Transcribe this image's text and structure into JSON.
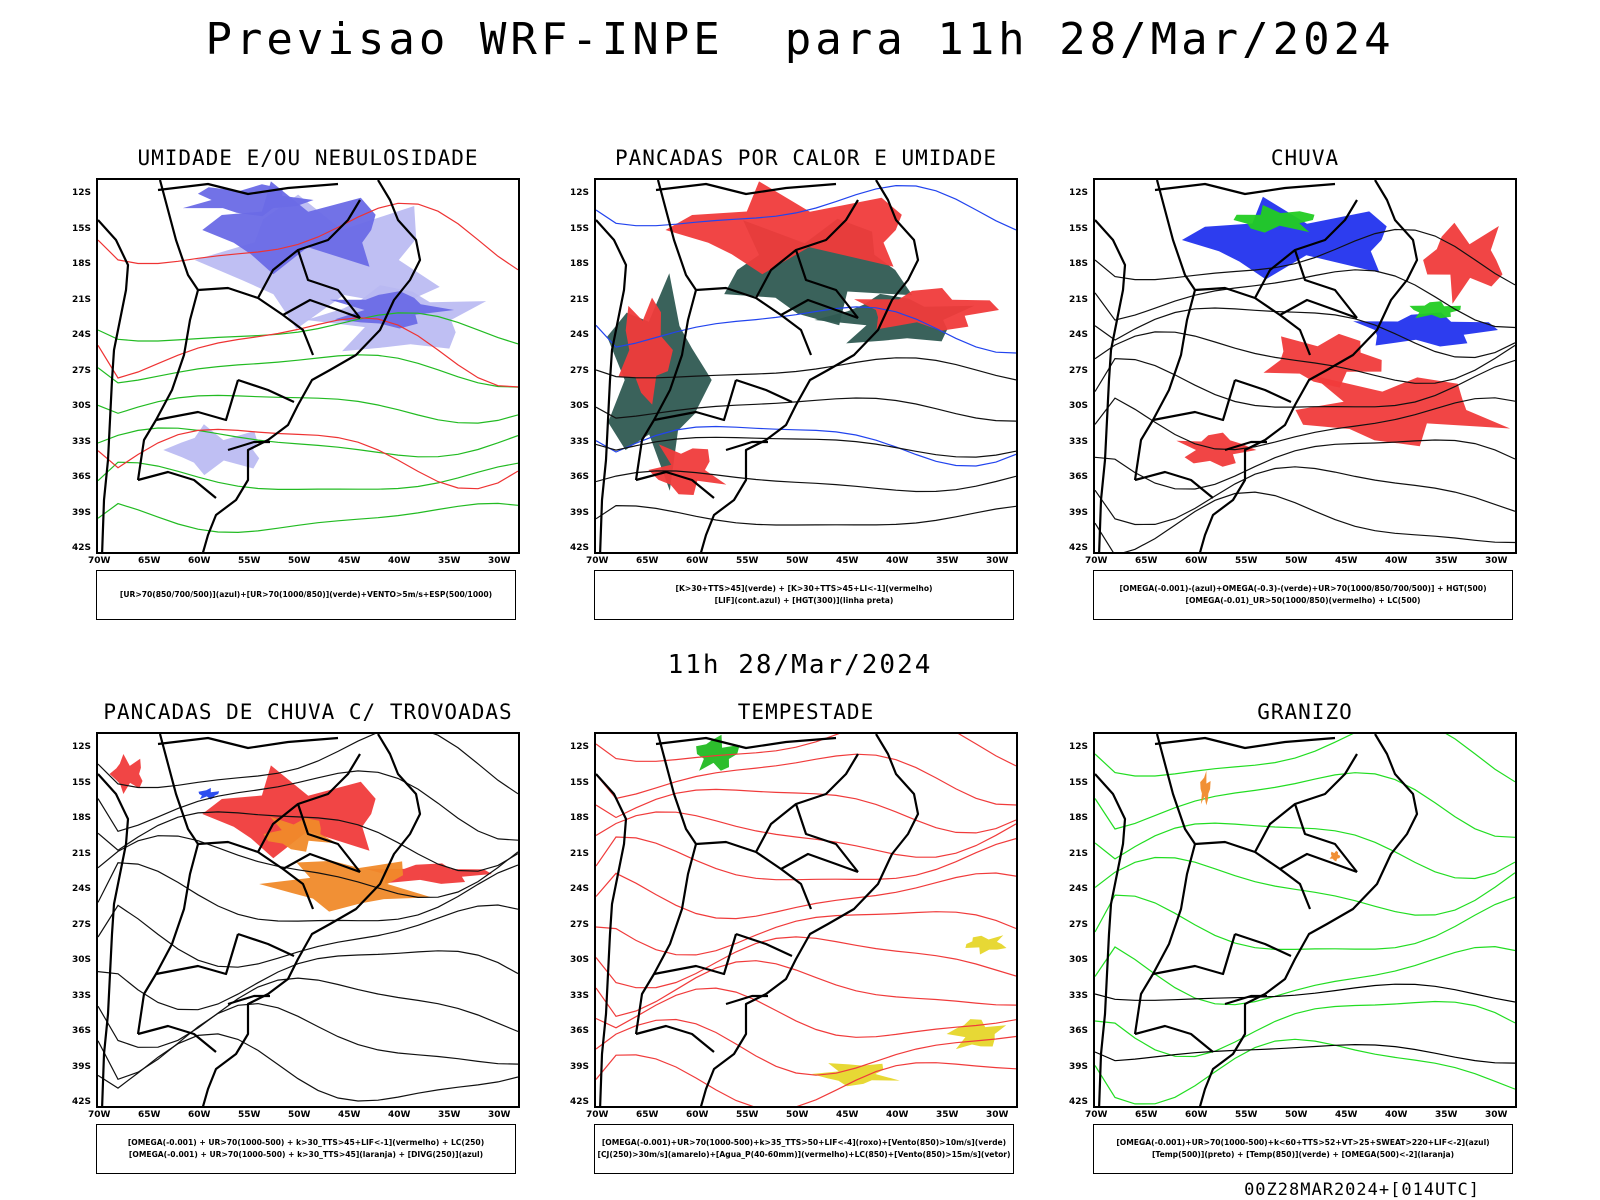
{
  "header": {
    "title": "Previsao WRF-INPE  para 11h 28/Mar/2024"
  },
  "middle_time": "11h 28/Mar/2024",
  "footer": "00Z28MAR2024+[014UTC]",
  "axes": {
    "lat_labels": [
      "12S",
      "15S",
      "18S",
      "21S",
      "24S",
      "27S",
      "30S",
      "33S",
      "36S",
      "39S",
      "42S"
    ],
    "lon_labels": [
      "70W",
      "65W",
      "60W",
      "55W",
      "50W",
      "45W",
      "40W",
      "35W",
      "30W"
    ]
  },
  "panels": [
    {
      "title": "UMIDADE E/OU NEBULOSIDADE",
      "legend": [
        "[UR>70(850/700/500)](azul)+[UR>70(1000/850)](verde)+VENTO>5m/s+ESP(500/1000)"
      ],
      "colors": [
        "#6a6ae6",
        "#b8b8f2",
        "#22bb22",
        "#ee3333"
      ]
    },
    {
      "title": "PANCADAS POR CALOR E UMIDADE",
      "legend": [
        "[K>30+TTS>45](verde) + [K>30+TTS>45+LI<-1](vermelho)",
        "[LIF](cont.azul) + [HGT(300)](linha preta)"
      ],
      "colors": [
        "#2f5a52",
        "#f03b3b",
        "#2244ee"
      ]
    },
    {
      "title": "CHUVA",
      "legend": [
        "[OMEGA(-0.001)-(azul)+OMEGA(-0.3)-(verde)+UR>70(1000/850/700/500)] + HGT(500)",
        "[OMEGA(-0.01)_UR>50(1000/850)(vermelho) + LC(500)"
      ],
      "colors": [
        "#2233ee",
        "#22cc22",
        "#f03b3b"
      ]
    },
    {
      "title": "PANCADAS DE CHUVA C/ TROVOADAS",
      "legend": [
        "[OMEGA(-0.001) + UR>70(1000-500) + k>30_TTS>45+LIF<-1](vermelho) + LC(250)",
        "[OMEGA(-0.001) + UR>70(1000-500) + k>30_TTS>45](laranja) + [DIVG(250)](azul)"
      ],
      "colors": [
        "#f03b3b",
        "#f08a2a",
        "#2244ee"
      ]
    },
    {
      "title": "TEMPESTADE",
      "legend": [
        "[OMEGA(-0.001)+UR>70(1000-500)+k>35_TTS>50+LIF<-4](roxo)+[Vento(850)>10m/s](verde)",
        "[CJ(250)>30m/s](amarelo)+[Agua_P(40-60mm)](vermelho)+LC(850)+[Vento(850)>15m/s](vetor)"
      ],
      "colors": [
        "#e6d62a",
        "#22bb22",
        "#f03b3b"
      ]
    },
    {
      "title": "GRANIZO",
      "legend": [
        "[OMEGA(-0.001)+UR>70(1000-500)+k<60+TTS>52+VT>25+SWEAT>220+LIF<-2](azul)",
        "[Temp(500)](preto) + [Temp(850)](verde) + [OMEGA(500)<-2](laranja)"
      ],
      "colors": [
        "#22dd22",
        "#f08a2a",
        "#000000"
      ]
    }
  ]
}
